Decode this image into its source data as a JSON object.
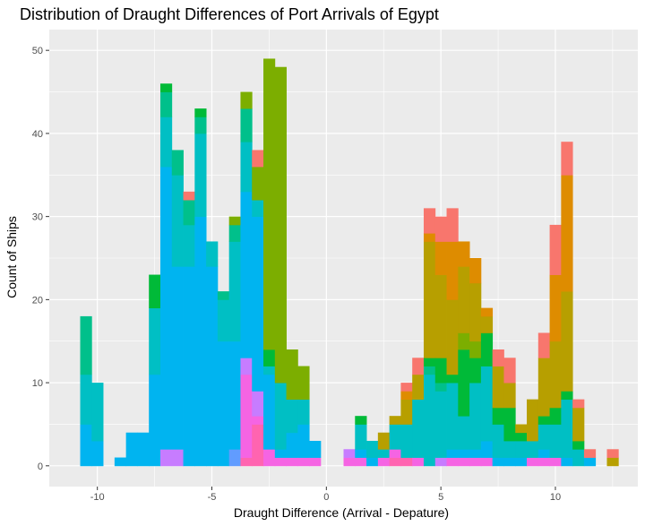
{
  "chart_data": {
    "type": "histogram",
    "title": "Distribution of Draught Differences of Port Arrivals of Egypt",
    "xlabel": "Draught Difference (Arrival - Depature)",
    "ylabel": "Count of Ships",
    "xlim": [
      -12.1,
      13.6
    ],
    "ylim": [
      -2.5,
      52.5
    ],
    "x_ticks": [
      -10,
      -5,
      0,
      5,
      10
    ],
    "x_tick_labels": [
      "-10",
      "-5",
      "0",
      "5",
      "10"
    ],
    "y_ticks": [
      0,
      10,
      20,
      30,
      40,
      50
    ],
    "y_tick_labels": [
      "0",
      "10",
      "20",
      "30",
      "40",
      "50"
    ],
    "bin_width": 0.5,
    "stacked_by": "color group (no legend shown)",
    "grid": true,
    "background": "#EBEBEB",
    "group_colors": [
      "#F8766D",
      "#DE8C00",
      "#B79F00",
      "#7CAE00",
      "#00BA38",
      "#00C08B",
      "#00BFC4",
      "#00B4F0",
      "#619CFF",
      "#C77CFF",
      "#F564E3",
      "#FF64B0"
    ],
    "bars": [
      {
        "x": -10.5,
        "segments": [
          [
            7,
            5
          ],
          [
            6,
            6
          ],
          [
            5,
            7
          ]
        ]
      },
      {
        "x": -10.0,
        "segments": [
          [
            7,
            3
          ],
          [
            6,
            7
          ]
        ]
      },
      {
        "x": -9.0,
        "segments": [
          [
            7,
            1
          ]
        ]
      },
      {
        "x": -8.5,
        "segments": [
          [
            7,
            4
          ]
        ]
      },
      {
        "x": -8.0,
        "segments": [
          [
            7,
            4
          ]
        ]
      },
      {
        "x": -7.5,
        "segments": [
          [
            7,
            11
          ],
          [
            6,
            8
          ],
          [
            4,
            4
          ]
        ]
      },
      {
        "x": -7.0,
        "segments": [
          [
            9,
            2
          ],
          [
            7,
            34
          ],
          [
            6,
            6
          ],
          [
            5,
            3
          ],
          [
            4,
            1
          ]
        ]
      },
      {
        "x": -6.5,
        "segments": [
          [
            9,
            2
          ],
          [
            7,
            22
          ],
          [
            6,
            11
          ],
          [
            5,
            3
          ]
        ]
      },
      {
        "x": -6.0,
        "segments": [
          [
            7,
            24
          ],
          [
            6,
            5
          ],
          [
            5,
            3
          ],
          [
            0,
            1
          ]
        ]
      },
      {
        "x": -5.5,
        "segments": [
          [
            7,
            30
          ],
          [
            6,
            10
          ],
          [
            5,
            2
          ],
          [
            4,
            1
          ]
        ]
      },
      {
        "x": -5.0,
        "segments": [
          [
            7,
            24
          ],
          [
            6,
            3
          ]
        ]
      },
      {
        "x": -4.5,
        "segments": [
          [
            7,
            15
          ],
          [
            6,
            5
          ],
          [
            5,
            1
          ]
        ]
      },
      {
        "x": -4.0,
        "segments": [
          [
            8,
            2
          ],
          [
            7,
            13
          ],
          [
            6,
            12
          ],
          [
            5,
            2
          ],
          [
            3,
            1
          ]
        ]
      },
      {
        "x": -3.5,
        "segments": [
          [
            11,
            1
          ],
          [
            10,
            10
          ],
          [
            9,
            2
          ],
          [
            7,
            20
          ],
          [
            6,
            6
          ],
          [
            5,
            4
          ],
          [
            3,
            2
          ]
        ]
      },
      {
        "x": -3.0,
        "segments": [
          [
            11,
            5
          ],
          [
            10,
            1
          ],
          [
            9,
            3
          ],
          [
            7,
            21
          ],
          [
            6,
            2
          ],
          [
            3,
            4
          ],
          [
            0,
            2
          ]
        ]
      },
      {
        "x": -2.5,
        "segments": [
          [
            10,
            2
          ],
          [
            7,
            9
          ],
          [
            6,
            1
          ],
          [
            4,
            2
          ],
          [
            3,
            35
          ]
        ]
      },
      {
        "x": -2.0,
        "segments": [
          [
            10,
            1
          ],
          [
            7,
            1
          ],
          [
            6,
            8
          ],
          [
            3,
            38
          ]
        ]
      },
      {
        "x": -1.5,
        "segments": [
          [
            10,
            1
          ],
          [
            7,
            3
          ],
          [
            6,
            4
          ],
          [
            3,
            6
          ]
        ]
      },
      {
        "x": -1.0,
        "segments": [
          [
            10,
            1
          ],
          [
            7,
            4
          ],
          [
            6,
            3
          ],
          [
            3,
            4
          ]
        ]
      },
      {
        "x": -0.5,
        "segments": [
          [
            10,
            1
          ],
          [
            7,
            2
          ]
        ]
      },
      {
        "x": 1.0,
        "segments": [
          [
            10,
            1
          ],
          [
            9,
            1
          ]
        ]
      },
      {
        "x": 1.5,
        "segments": [
          [
            10,
            1
          ],
          [
            7,
            1
          ],
          [
            6,
            3
          ],
          [
            4,
            1
          ]
        ]
      },
      {
        "x": 2.0,
        "segments": [
          [
            7,
            1
          ],
          [
            6,
            2
          ]
        ]
      },
      {
        "x": 2.5,
        "segments": [
          [
            10,
            1
          ],
          [
            6,
            1
          ],
          [
            2,
            2
          ]
        ]
      },
      {
        "x": 3.0,
        "segments": [
          [
            11,
            1
          ],
          [
            10,
            1
          ],
          [
            6,
            3
          ],
          [
            2,
            1
          ]
        ]
      },
      {
        "x": 3.5,
        "segments": [
          [
            11,
            1
          ],
          [
            6,
            4
          ],
          [
            2,
            3
          ],
          [
            1,
            1
          ],
          [
            0,
            1
          ]
        ]
      },
      {
        "x": 4.0,
        "segments": [
          [
            10,
            1
          ],
          [
            6,
            7
          ],
          [
            2,
            3
          ],
          [
            0,
            2
          ]
        ]
      },
      {
        "x": 4.5,
        "segments": [
          [
            6,
            11
          ],
          [
            5,
            1
          ],
          [
            4,
            1
          ],
          [
            2,
            14
          ],
          [
            1,
            1
          ],
          [
            0,
            3
          ]
        ]
      },
      {
        "x": 5.0,
        "segments": [
          [
            9,
            1
          ],
          [
            6,
            8
          ],
          [
            5,
            1
          ],
          [
            4,
            3
          ],
          [
            2,
            10
          ],
          [
            1,
            4
          ],
          [
            0,
            3
          ]
        ]
      },
      {
        "x": 5.5,
        "segments": [
          [
            10,
            1
          ],
          [
            7,
            1
          ],
          [
            6,
            8
          ],
          [
            4,
            1
          ],
          [
            2,
            9
          ],
          [
            1,
            7
          ],
          [
            0,
            4
          ]
        ]
      },
      {
        "x": 6.0,
        "segments": [
          [
            10,
            1
          ],
          [
            7,
            1
          ],
          [
            6,
            4
          ],
          [
            4,
            8
          ],
          [
            3,
            2
          ],
          [
            2,
            8
          ],
          [
            1,
            3
          ]
        ]
      },
      {
        "x": 6.5,
        "segments": [
          [
            10,
            1
          ],
          [
            7,
            1
          ],
          [
            6,
            8
          ],
          [
            4,
            3
          ],
          [
            3,
            2
          ],
          [
            2,
            7
          ],
          [
            1,
            3
          ]
        ]
      },
      {
        "x": 7.0,
        "segments": [
          [
            10,
            1
          ],
          [
            7,
            2
          ],
          [
            6,
            9
          ],
          [
            4,
            4
          ],
          [
            2,
            2
          ],
          [
            1,
            1
          ]
        ]
      },
      {
        "x": 7.5,
        "segments": [
          [
            7,
            1
          ],
          [
            6,
            4
          ],
          [
            4,
            2
          ],
          [
            2,
            5
          ],
          [
            0,
            2
          ]
        ]
      },
      {
        "x": 8.0,
        "segments": [
          [
            7,
            1
          ],
          [
            6,
            2
          ],
          [
            4,
            4
          ],
          [
            2,
            3
          ],
          [
            0,
            3
          ]
        ]
      },
      {
        "x": 8.5,
        "segments": [
          [
            7,
            1
          ],
          [
            6,
            2
          ],
          [
            4,
            1
          ],
          [
            2,
            1
          ]
        ]
      },
      {
        "x": 9.0,
        "segments": [
          [
            10,
            1
          ],
          [
            6,
            2
          ],
          [
            2,
            5
          ]
        ]
      },
      {
        "x": 9.5,
        "segments": [
          [
            10,
            1
          ],
          [
            7,
            1
          ],
          [
            6,
            3
          ],
          [
            4,
            1
          ],
          [
            2,
            7
          ],
          [
            0,
            3
          ]
        ]
      },
      {
        "x": 10.0,
        "segments": [
          [
            10,
            1
          ],
          [
            6,
            4
          ],
          [
            4,
            2
          ],
          [
            2,
            8
          ],
          [
            1,
            8
          ],
          [
            0,
            6
          ]
        ]
      },
      {
        "x": 10.5,
        "segments": [
          [
            7,
            1
          ],
          [
            6,
            7
          ],
          [
            4,
            1
          ],
          [
            2,
            12
          ],
          [
            1,
            14
          ],
          [
            0,
            4
          ]
        ]
      },
      {
        "x": 11.0,
        "segments": [
          [
            6,
            2
          ],
          [
            4,
            1
          ],
          [
            2,
            4
          ],
          [
            0,
            1
          ]
        ]
      },
      {
        "x": 11.5,
        "segments": [
          [
            7,
            1
          ],
          [
            0,
            1
          ]
        ]
      },
      {
        "x": 12.5,
        "segments": [
          [
            2,
            1
          ],
          [
            0,
            1
          ]
        ]
      }
    ]
  }
}
